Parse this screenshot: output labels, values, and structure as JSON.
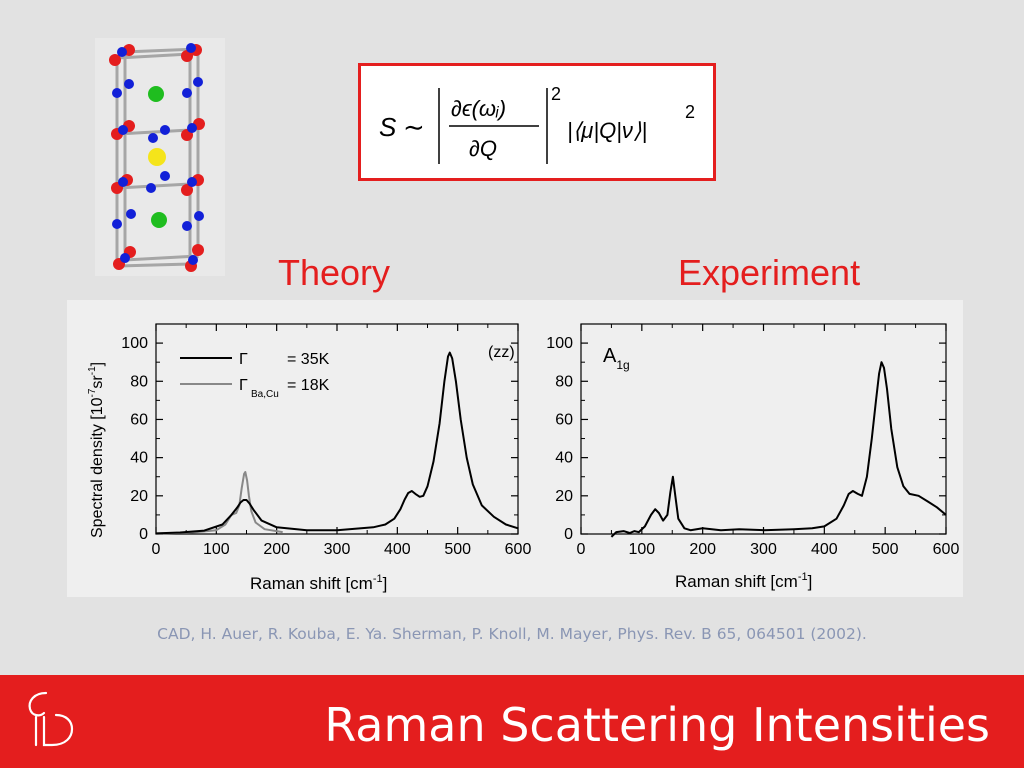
{
  "formula": {
    "S": "S",
    "sim": "∼",
    "numerator": "∂ϵ(ωᵢ)",
    "denominator": "∂Q",
    "power1": "2",
    "matrix_element": "|⟨μ|Q|ν⟩|",
    "power2": "2"
  },
  "headings": {
    "theory": "Theory",
    "experiment": "Experiment"
  },
  "citation": "CAD, H. Auer, R. Kouba, E. Ya. Sherman, P. Knoll, M. Mayer, Phys. Rev. B 65, 064501 (2002).",
  "footer": {
    "title": "Raman Scattering Intensities"
  },
  "colors": {
    "accent": "#e41e1e",
    "citation": "#8a96b4",
    "background": "#e2e2e2"
  },
  "chart_data": [
    {
      "type": "line",
      "xlabel_main": "Raman shift [cm",
      "xlabel_sup": "-1",
      "xlabel_end": "]",
      "ylabel_main": "Spectral density [10",
      "ylabel_sup1": "-7",
      "ylabel_mid": "sr",
      "ylabel_sup2": "-1",
      "ylabel_end": "]",
      "annotation": "(zz)",
      "xlim": [
        0,
        600
      ],
      "ylim": [
        0,
        110
      ],
      "x_ticks": [
        "0",
        "100",
        "200",
        "300",
        "400",
        "500",
        "600"
      ],
      "y_ticks": [
        "0",
        "20",
        "40",
        "60",
        "80",
        "100"
      ],
      "legend": [
        {
          "symbol": "Γ",
          "sub": "",
          "value": "= 35K",
          "color": "#000000"
        },
        {
          "symbol": "Γ",
          "sub": "Ba,Cu",
          "value": "= 18K",
          "color": "#888888"
        }
      ],
      "series": [
        {
          "color": "#000000",
          "points": [
            [
              0,
              0.3
            ],
            [
              40,
              0.8
            ],
            [
              80,
              1.8
            ],
            [
              110,
              5
            ],
            [
              125,
              10
            ],
            [
              135,
              14
            ],
            [
              140,
              16.5
            ],
            [
              145,
              17.8
            ],
            [
              150,
              17.8
            ],
            [
              155,
              16
            ],
            [
              162,
              12.5
            ],
            [
              175,
              7
            ],
            [
              200,
              3.5
            ],
            [
              250,
              2
            ],
            [
              300,
              2
            ],
            [
              330,
              2.7
            ],
            [
              360,
              3.5
            ],
            [
              380,
              5
            ],
            [
              395,
              8
            ],
            [
              405,
              13
            ],
            [
              412,
              18
            ],
            [
              418,
              21.5
            ],
            [
              424,
              22.5
            ],
            [
              430,
              21
            ],
            [
              437,
              19.5
            ],
            [
              443,
              20
            ],
            [
              450,
              25
            ],
            [
              460,
              38
            ],
            [
              470,
              58
            ],
            [
              478,
              80
            ],
            [
              484,
              93
            ],
            [
              487,
              95
            ],
            [
              491,
              92
            ],
            [
              497,
              80
            ],
            [
              505,
              60
            ],
            [
              515,
              40
            ],
            [
              525,
              26
            ],
            [
              540,
              15
            ],
            [
              560,
              9
            ],
            [
              580,
              5
            ],
            [
              600,
              3
            ]
          ]
        },
        {
          "color": "#888888",
          "points": [
            [
              0,
              0.2
            ],
            [
              60,
              0.8
            ],
            [
              100,
              2
            ],
            [
              115,
              5
            ],
            [
              125,
              10
            ],
            [
              133,
              11
            ],
            [
              138,
              15
            ],
            [
              142,
              24
            ],
            [
              146,
              31.5
            ],
            [
              148,
              32.5
            ],
            [
              151,
              28
            ],
            [
              154,
              20
            ],
            [
              158,
              12
            ],
            [
              165,
              6
            ],
            [
              180,
              2.5
            ],
            [
              210,
              1
            ]
          ]
        }
      ]
    },
    {
      "type": "line",
      "xlabel_main": "Raman shift [cm",
      "xlabel_sup": "-1",
      "xlabel_end": "]",
      "annotation_main": "A",
      "annotation_sub": "1g",
      "xlim": [
        0,
        600
      ],
      "ylim": [
        0,
        110
      ],
      "x_ticks": [
        "0",
        "100",
        "200",
        "300",
        "400",
        "500",
        "600"
      ],
      "y_ticks": [
        "0",
        "20",
        "40",
        "60",
        "80",
        "100"
      ],
      "series": [
        {
          "color": "#000000",
          "points": [
            [
              50,
              -1.5
            ],
            [
              58,
              1
            ],
            [
              70,
              1.5
            ],
            [
              80,
              0.5
            ],
            [
              88,
              1.5
            ],
            [
              95,
              1
            ],
            [
              105,
              4
            ],
            [
              115,
              10
            ],
            [
              122,
              13
            ],
            [
              128,
              11
            ],
            [
              135,
              7
            ],
            [
              142,
              10
            ],
            [
              147,
              22
            ],
            [
              151,
              30
            ],
            [
              155,
              20
            ],
            [
              160,
              8
            ],
            [
              170,
              3
            ],
            [
              180,
              2
            ],
            [
              200,
              3
            ],
            [
              230,
              2
            ],
            [
              260,
              2.5
            ],
            [
              300,
              2
            ],
            [
              350,
              2.5
            ],
            [
              380,
              3
            ],
            [
              400,
              4
            ],
            [
              420,
              8
            ],
            [
              432,
              15
            ],
            [
              440,
              21
            ],
            [
              447,
              22.5
            ],
            [
              455,
              21
            ],
            [
              462,
              20
            ],
            [
              470,
              30
            ],
            [
              478,
              50
            ],
            [
              485,
              70
            ],
            [
              490,
              84
            ],
            [
              494,
              90
            ],
            [
              498,
              87
            ],
            [
              503,
              76
            ],
            [
              510,
              55
            ],
            [
              520,
              35
            ],
            [
              530,
              25
            ],
            [
              540,
              21
            ],
            [
              555,
              20
            ],
            [
              570,
              17
            ],
            [
              585,
              14
            ],
            [
              600,
              10
            ]
          ]
        }
      ]
    }
  ]
}
